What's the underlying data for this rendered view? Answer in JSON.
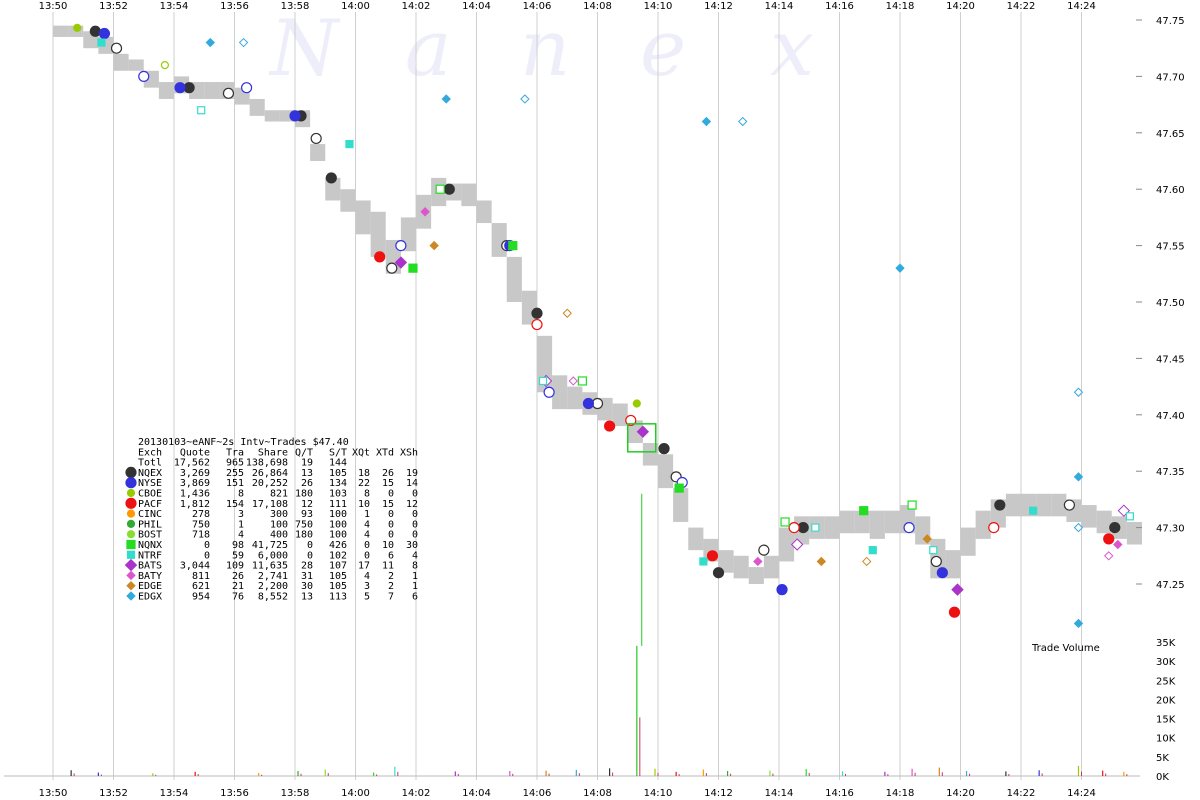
{
  "chart_data": {
    "type": "scatter",
    "watermark": [
      "N",
      "a",
      "n",
      "e",
      "x"
    ],
    "x_ticks": [
      "13:50",
      "13:52",
      "13:54",
      "13:56",
      "13:58",
      "14:00",
      "14:02",
      "14:04",
      "14:06",
      "14:08",
      "14:10",
      "14:12",
      "14:14",
      "14:16",
      "14:18",
      "14:20",
      "14:22",
      "14:24"
    ],
    "x_range_min": [
      0,
      36
    ],
    "price_ticks": [
      "47.75",
      "47.70",
      "47.65",
      "47.60",
      "47.55",
      "47.50",
      "47.45",
      "47.40",
      "47.35",
      "47.30",
      "47.25"
    ],
    "price_range": [
      47.2,
      47.75
    ],
    "volume_ticks": [
      "35K",
      "30K",
      "25K",
      "20K",
      "15K",
      "10K",
      "5K",
      "0K"
    ],
    "volume_range": [
      0,
      35000
    ],
    "volume_label": "Trade Volume",
    "grid": true,
    "legend_position": "left-middle",
    "table_title": "20130103~eANF~2s Intv~Trades $47.40",
    "table_header": [
      "Exch",
      "Quote",
      "Tra",
      "Share",
      "Q/T",
      "S/T",
      "XQt",
      "XTd",
      "XSh"
    ],
    "table_total": [
      "Totl",
      "17,562",
      "965",
      "138,698",
      "19",
      "144",
      "",
      "",
      ""
    ],
    "exchanges": [
      {
        "name": "NQEX",
        "color": "#333333",
        "marker": "circle-lg",
        "row": [
          "3,269",
          "255",
          "26,864",
          "13",
          "105",
          "18",
          "26",
          "19"
        ]
      },
      {
        "name": "NYSE",
        "color": "#3333dd",
        "marker": "circle-lg",
        "row": [
          "3,869",
          "151",
          "20,252",
          "26",
          "134",
          "22",
          "15",
          "14"
        ]
      },
      {
        "name": "CBOE",
        "color": "#99cc00",
        "marker": "circle-sm",
        "row": [
          "1,436",
          "8",
          "821",
          "180",
          "103",
          "8",
          "0",
          "0"
        ]
      },
      {
        "name": "PACF",
        "color": "#ee1111",
        "marker": "circle-lg",
        "row": [
          "1,812",
          "154",
          "17,108",
          "12",
          "111",
          "10",
          "15",
          "12"
        ]
      },
      {
        "name": "CINC",
        "color": "#ff9900",
        "marker": "circle-sm",
        "row": [
          "278",
          "3",
          "300",
          "93",
          "100",
          "1",
          "0",
          "0"
        ]
      },
      {
        "name": "PHIL",
        "color": "#33aa33",
        "marker": "circle-sm",
        "row": [
          "750",
          "1",
          "100",
          "750",
          "100",
          "4",
          "0",
          "0"
        ]
      },
      {
        "name": "BOST",
        "color": "#88dd33",
        "marker": "circle-sm",
        "row": [
          "718",
          "4",
          "400",
          "180",
          "100",
          "4",
          "0",
          "0"
        ]
      },
      {
        "name": "NQNX",
        "color": "#22dd22",
        "marker": "square",
        "row": [
          "0",
          "98",
          "41,725",
          "0",
          "426",
          "0",
          "10",
          "30"
        ]
      },
      {
        "name": "NTRF",
        "color": "#33ddcc",
        "marker": "square-sm",
        "row": [
          "0",
          "59",
          "6,000",
          "0",
          "102",
          "0",
          "6",
          "4"
        ]
      },
      {
        "name": "BATS",
        "color": "#aa33cc",
        "marker": "diamond-lg",
        "row": [
          "3,044",
          "109",
          "11,635",
          "28",
          "107",
          "17",
          "11",
          "8"
        ]
      },
      {
        "name": "BATY",
        "color": "#dd55cc",
        "marker": "diamond-sm",
        "row": [
          "811",
          "26",
          "2,741",
          "31",
          "105",
          "4",
          "2",
          "1"
        ]
      },
      {
        "name": "EDGE",
        "color": "#cc8822",
        "marker": "diamond-sm",
        "row": [
          "621",
          "21",
          "2,200",
          "30",
          "105",
          "3",
          "2",
          "1"
        ]
      },
      {
        "name": "EDGX",
        "color": "#33aadd",
        "marker": "diamond-sm",
        "row": [
          "954",
          "76",
          "8,552",
          "13",
          "113",
          "5",
          "7",
          "6"
        ]
      }
    ],
    "nbbo_band": [
      [
        0.0,
        47.735,
        47.745
      ],
      [
        0.5,
        47.735,
        47.745
      ],
      [
        1.0,
        47.725,
        47.74
      ],
      [
        1.5,
        47.72,
        47.735
      ],
      [
        2.0,
        47.705,
        47.72
      ],
      [
        2.5,
        47.705,
        47.715
      ],
      [
        3.0,
        47.69,
        47.705
      ],
      [
        3.5,
        47.68,
        47.695
      ],
      [
        4.0,
        47.685,
        47.7
      ],
      [
        4.5,
        47.68,
        47.695
      ],
      [
        5.0,
        47.68,
        47.695
      ],
      [
        5.5,
        47.68,
        47.695
      ],
      [
        6.0,
        47.675,
        47.69
      ],
      [
        6.5,
        47.665,
        47.68
      ],
      [
        7.0,
        47.66,
        47.67
      ],
      [
        7.5,
        47.66,
        47.67
      ],
      [
        8.0,
        47.655,
        47.67
      ],
      [
        8.5,
        47.625,
        47.64
      ],
      [
        9.0,
        47.59,
        47.61
      ],
      [
        9.5,
        47.58,
        47.6
      ],
      [
        10.0,
        47.56,
        47.59
      ],
      [
        10.5,
        47.54,
        47.58
      ],
      [
        11.0,
        47.525,
        47.555
      ],
      [
        11.5,
        47.545,
        47.575
      ],
      [
        12.0,
        47.565,
        47.595
      ],
      [
        12.5,
        47.585,
        47.61
      ],
      [
        13.0,
        47.59,
        47.605
      ],
      [
        13.5,
        47.585,
        47.605
      ],
      [
        14.0,
        47.57,
        47.59
      ],
      [
        14.5,
        47.54,
        47.57
      ],
      [
        15.0,
        47.5,
        47.54
      ],
      [
        15.5,
        47.48,
        47.51
      ],
      [
        16.0,
        47.42,
        47.47
      ],
      [
        16.5,
        47.405,
        47.435
      ],
      [
        17.0,
        47.405,
        47.425
      ],
      [
        17.5,
        47.4,
        47.42
      ],
      [
        18.0,
        47.395,
        47.415
      ],
      [
        18.5,
        47.39,
        47.41
      ],
      [
        19.0,
        47.375,
        47.395
      ],
      [
        19.5,
        47.355,
        47.375
      ],
      [
        20.0,
        47.335,
        47.365
      ],
      [
        20.5,
        47.305,
        47.335
      ],
      [
        21.0,
        47.28,
        47.3
      ],
      [
        21.5,
        47.27,
        47.29
      ],
      [
        22.0,
        47.26,
        47.28
      ],
      [
        22.5,
        47.255,
        47.275
      ],
      [
        23.0,
        47.25,
        47.265
      ],
      [
        23.5,
        47.255,
        47.275
      ],
      [
        24.0,
        47.27,
        47.3
      ],
      [
        24.5,
        47.285,
        47.31
      ],
      [
        25.0,
        47.29,
        47.31
      ],
      [
        25.5,
        47.29,
        47.31
      ],
      [
        26.0,
        47.295,
        47.315
      ],
      [
        26.5,
        47.295,
        47.315
      ],
      [
        27.0,
        47.29,
        47.315
      ],
      [
        27.5,
        47.295,
        47.315
      ],
      [
        28.0,
        47.295,
        47.32
      ],
      [
        28.5,
        47.285,
        47.31
      ],
      [
        29.0,
        47.255,
        47.29
      ],
      [
        29.5,
        47.255,
        47.28
      ],
      [
        30.0,
        47.275,
        47.3
      ],
      [
        30.5,
        47.29,
        47.315
      ],
      [
        31.0,
        47.3,
        47.325
      ],
      [
        31.5,
        47.31,
        47.33
      ],
      [
        32.0,
        47.31,
        47.33
      ],
      [
        32.5,
        47.31,
        47.33
      ],
      [
        33.0,
        47.31,
        47.33
      ],
      [
        33.5,
        47.305,
        47.325
      ],
      [
        34.0,
        47.3,
        47.32
      ],
      [
        34.5,
        47.295,
        47.315
      ],
      [
        35.0,
        47.29,
        47.31
      ],
      [
        35.5,
        47.285,
        47.305
      ]
    ],
    "trades": [
      {
        "ex": "NQEX",
        "pts": [
          [
            1.4,
            47.74
          ],
          [
            2.1,
            47.725
          ],
          [
            4.5,
            47.69
          ],
          [
            5.8,
            47.685
          ],
          [
            8.2,
            47.665
          ],
          [
            8.7,
            47.645
          ],
          [
            9.2,
            47.61
          ],
          [
            11.2,
            47.53
          ],
          [
            13.1,
            47.6
          ],
          [
            15.0,
            47.55
          ],
          [
            16.0,
            47.49
          ],
          [
            18.0,
            47.41
          ],
          [
            20.2,
            47.37
          ],
          [
            20.6,
            47.345
          ],
          [
            22.0,
            47.26
          ],
          [
            23.5,
            47.28
          ],
          [
            24.8,
            47.3
          ],
          [
            29.2,
            47.27
          ],
          [
            31.3,
            47.32
          ],
          [
            33.6,
            47.32
          ],
          [
            35.1,
            47.3
          ]
        ]
      },
      {
        "ex": "NYSE",
        "pts": [
          [
            1.7,
            47.738
          ],
          [
            3.0,
            47.7
          ],
          [
            4.2,
            47.69
          ],
          [
            6.4,
            47.69
          ],
          [
            8.0,
            47.665
          ],
          [
            11.5,
            47.55
          ],
          [
            15.1,
            47.55
          ],
          [
            16.4,
            47.42
          ],
          [
            17.7,
            47.41
          ],
          [
            20.8,
            47.34
          ],
          [
            24.1,
            47.245
          ],
          [
            28.3,
            47.3
          ],
          [
            29.4,
            47.26
          ]
        ]
      },
      {
        "ex": "PACF",
        "pts": [
          [
            10.8,
            47.54
          ],
          [
            16.0,
            47.48
          ],
          [
            18.4,
            47.39
          ],
          [
            19.1,
            47.395
          ],
          [
            21.8,
            47.275
          ],
          [
            24.5,
            47.3
          ],
          [
            29.8,
            47.225
          ],
          [
            31.1,
            47.3
          ],
          [
            34.9,
            47.29
          ]
        ]
      },
      {
        "ex": "BATS",
        "pts": [
          [
            11.5,
            47.535
          ],
          [
            16.3,
            47.43
          ],
          [
            19.5,
            47.385
          ],
          [
            24.6,
            47.285
          ],
          [
            29.9,
            47.245
          ],
          [
            35.4,
            47.315
          ]
        ]
      },
      {
        "ex": "NQNX",
        "pts": [
          [
            11.9,
            47.53
          ],
          [
            12.8,
            47.6
          ],
          [
            15.2,
            47.55
          ],
          [
            17.5,
            47.43
          ],
          [
            20.7,
            47.335
          ],
          [
            24.2,
            47.305
          ],
          [
            26.8,
            47.315
          ],
          [
            28.4,
            47.32
          ]
        ]
      },
      {
        "ex": "NTRF",
        "pts": [
          [
            1.6,
            47.73
          ],
          [
            4.9,
            47.67
          ],
          [
            9.8,
            47.64
          ],
          [
            16.2,
            47.43
          ],
          [
            21.5,
            47.27
          ],
          [
            25.2,
            47.3
          ],
          [
            27.1,
            47.28
          ],
          [
            29.1,
            47.28
          ],
          [
            32.4,
            47.315
          ],
          [
            35.6,
            47.31
          ]
        ]
      },
      {
        "ex": "EDGE",
        "pts": [
          [
            12.6,
            47.55
          ],
          [
            17.0,
            47.49
          ],
          [
            25.4,
            47.27
          ],
          [
            26.9,
            47.27
          ],
          [
            28.9,
            47.29
          ]
        ]
      },
      {
        "ex": "EDGX",
        "pts": [
          [
            5.2,
            47.73
          ],
          [
            6.3,
            47.73
          ],
          [
            13.0,
            47.68
          ],
          [
            15.6,
            47.68
          ],
          [
            21.6,
            47.66
          ],
          [
            22.8,
            47.66
          ],
          [
            28.0,
            47.53
          ],
          [
            33.9,
            47.42
          ],
          [
            33.9,
            47.345
          ],
          [
            33.9,
            47.3
          ],
          [
            33.9,
            47.215
          ]
        ]
      },
      {
        "ex": "CBOE",
        "pts": [
          [
            0.8,
            47.743
          ],
          [
            3.7,
            47.71
          ],
          [
            19.3,
            47.41
          ]
        ]
      },
      {
        "ex": "BATY",
        "pts": [
          [
            12.3,
            47.58
          ],
          [
            17.2,
            47.43
          ],
          [
            23.3,
            47.27
          ],
          [
            34.9,
            47.275
          ],
          [
            35.2,
            47.285
          ]
        ]
      }
    ],
    "volume_bars": [
      [
        0.6,
        1500
      ],
      [
        1.5,
        900
      ],
      [
        3.3,
        700
      ],
      [
        4.7,
        1100
      ],
      [
        6.8,
        800
      ],
      [
        8.1,
        1300
      ],
      [
        9.0,
        1700
      ],
      [
        10.6,
        900
      ],
      [
        11.3,
        2400
      ],
      [
        13.3,
        1200
      ],
      [
        15.1,
        1300
      ],
      [
        16.3,
        1400
      ],
      [
        17.3,
        1600
      ],
      [
        18.4,
        2000
      ],
      [
        19.3,
        34000
      ],
      [
        19.9,
        1900
      ],
      [
        20.6,
        1100
      ],
      [
        21.5,
        1700
      ],
      [
        22.3,
        1300
      ],
      [
        23.7,
        1400
      ],
      [
        24.9,
        1800
      ],
      [
        26.1,
        1200
      ],
      [
        27.5,
        1100
      ],
      [
        28.4,
        1900
      ],
      [
        29.3,
        2200
      ],
      [
        30.2,
        1300
      ],
      [
        31.5,
        1200
      ],
      [
        32.6,
        1500
      ],
      [
        33.9,
        2600
      ],
      [
        34.7,
        1400
      ],
      [
        35.4,
        1100
      ]
    ]
  }
}
